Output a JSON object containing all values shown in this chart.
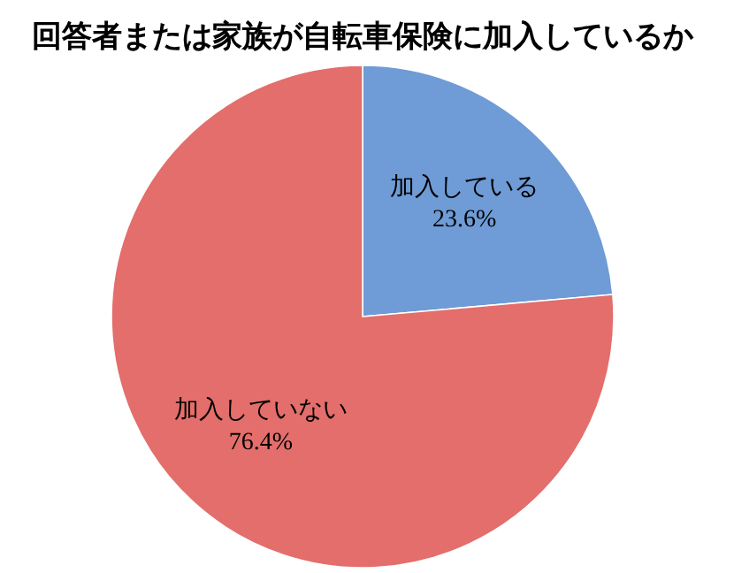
{
  "chart_data": {
    "type": "pie",
    "title": "回答者または家族が自転車保険に加入しているか",
    "categories": [
      "加入している",
      "加入していない"
    ],
    "values": [
      23.6,
      76.4
    ],
    "value_labels": [
      "23.6%",
      "76.4%"
    ],
    "colors": [
      "#6f9bd6",
      "#e36e6b"
    ],
    "legend": false
  }
}
